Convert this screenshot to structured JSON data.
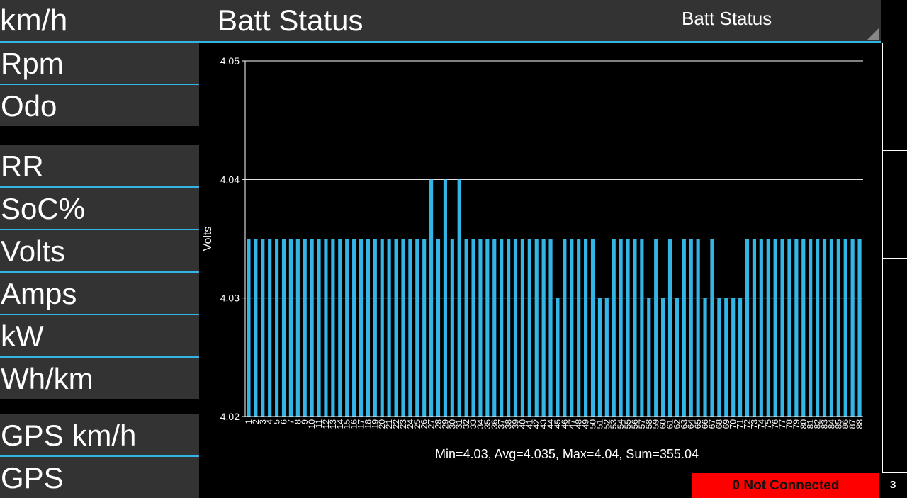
{
  "header": {
    "nav_label": "km/h",
    "title": "Batt Status",
    "selector_value": "Batt Status"
  },
  "sidebar": {
    "items": [
      "Rpm",
      "Odo",
      "RR",
      "SoC%",
      "Volts",
      "Amps",
      "kW",
      "Wh/km",
      "GPS km/h",
      "GPS"
    ]
  },
  "colors": {
    "accent": "#33b5e5",
    "bar": "#33b5e5",
    "status_bg": "#ff0000",
    "panel": "#333333"
  },
  "chart_data": {
    "type": "bar",
    "title": "",
    "xlabel": "",
    "ylabel": "Volts",
    "ylim": [
      4.02,
      4.05
    ],
    "yticks": [
      "4.02",
      "4.03",
      "4.04",
      "4.05"
    ],
    "grid": true,
    "categories": [
      "1",
      "2",
      "3",
      "4",
      "5",
      "6",
      "7",
      "8",
      "9",
      "10",
      "11",
      "12",
      "13",
      "14",
      "15",
      "16",
      "17",
      "18",
      "19",
      "20",
      "21",
      "22",
      "23",
      "24",
      "25",
      "26",
      "27",
      "28",
      "29",
      "30",
      "31",
      "32",
      "33",
      "34",
      "35",
      "36",
      "37",
      "38",
      "39",
      "40",
      "41",
      "42",
      "43",
      "44",
      "45",
      "46",
      "47",
      "48",
      "49",
      "50",
      "51",
      "52",
      "53",
      "54",
      "55",
      "56",
      "57",
      "58",
      "59",
      "60",
      "61",
      "62",
      "63",
      "64",
      "65",
      "66",
      "67",
      "68",
      "69",
      "70",
      "71",
      "72",
      "73",
      "74",
      "75",
      "76",
      "77",
      "78",
      "79",
      "80",
      "81",
      "82",
      "83",
      "84",
      "85",
      "86",
      "87",
      "88"
    ],
    "values": [
      4.035,
      4.035,
      4.035,
      4.035,
      4.035,
      4.035,
      4.035,
      4.035,
      4.035,
      4.035,
      4.035,
      4.035,
      4.035,
      4.035,
      4.035,
      4.035,
      4.035,
      4.035,
      4.035,
      4.035,
      4.035,
      4.035,
      4.035,
      4.035,
      4.035,
      4.035,
      4.04,
      4.035,
      4.04,
      4.035,
      4.04,
      4.035,
      4.035,
      4.035,
      4.035,
      4.035,
      4.035,
      4.035,
      4.035,
      4.035,
      4.035,
      4.035,
      4.035,
      4.035,
      4.03,
      4.035,
      4.035,
      4.035,
      4.035,
      4.035,
      4.03,
      4.03,
      4.035,
      4.035,
      4.035,
      4.035,
      4.035,
      4.03,
      4.035,
      4.03,
      4.035,
      4.03,
      4.035,
      4.035,
      4.035,
      4.03,
      4.035,
      4.03,
      4.03,
      4.03,
      4.03,
      4.035,
      4.035,
      4.035,
      4.035,
      4.035,
      4.035,
      4.035,
      4.035,
      4.035,
      4.035,
      4.035,
      4.035,
      4.035,
      4.035,
      4.035,
      4.035,
      4.035
    ],
    "summary": "Min=4.03, Avg=4.035, Max=4.04, Sum=355.04"
  },
  "status": {
    "connection_label": "0 Not Connected",
    "page_number": "3"
  }
}
